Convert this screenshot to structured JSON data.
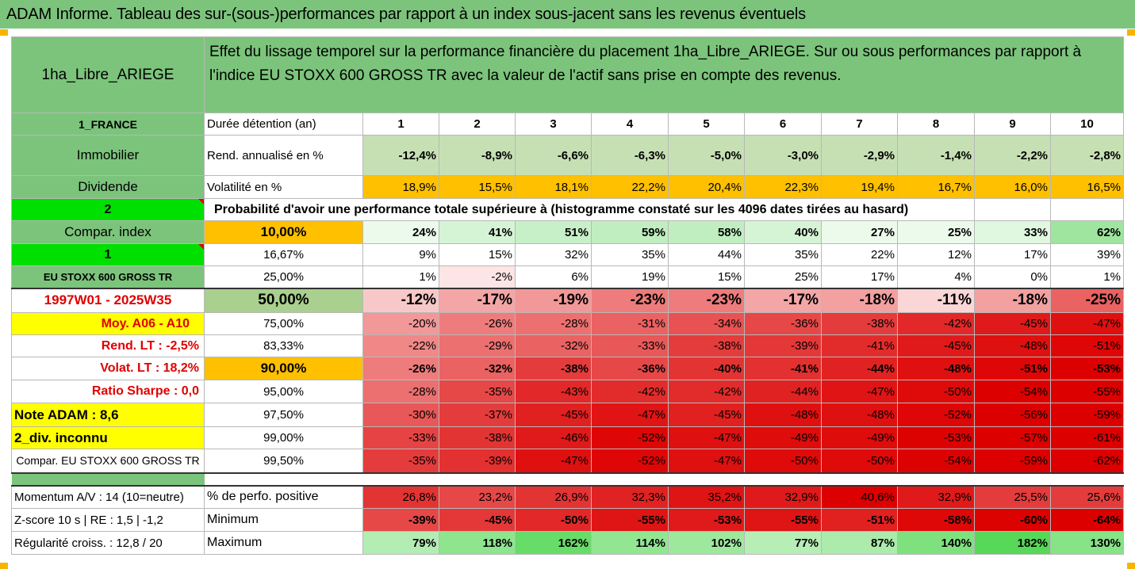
{
  "title": "ADAM Informe. Tableau des sur-(sous-)performances par rapport à un index sous-jacent sans les revenus éventuels",
  "product": "1ha_Libre_ARIEGE",
  "description": "Effet du lissage temporel sur la performance financière du placement 1ha_Libre_ARIEGE. Sur ou sous performances par rapport à l'indice EU STOXX 600 GROSS TR avec la valeur de l'actif sans prise en compte des revenus.",
  "left": {
    "country": "1_FRANCE",
    "category": "Immobilier",
    "dividende": "Dividende",
    "n2": "2",
    "compar": "Compar. index",
    "n1": "1",
    "index": "EU STOXX 600 GROSS TR",
    "period": "1997W01 - 2025W35",
    "moy": "Moy. A06 - A10",
    "rend": "Rend. LT :   -2,5%",
    "volat": "Volat. LT :   18,2%",
    "sharpe": "Ratio Sharpe :   0,0",
    "note": "Note ADAM : 8,6",
    "div": "2_div. inconnu",
    "compar2": "Compar. EU STOXX 600 GROSS TR",
    "momentum": "Momentum A/V : 14 (10=neutre)",
    "zscore": "Z-score 10 s  | RE : 1,5  | -1,2",
    "regul": "Régularité croiss. : 12,8 / 20"
  },
  "labels": {
    "duree": "Durée détention (an)",
    "rend": "Rend. annualisé en %",
    "vol": "Volatilité en %",
    "proba": "Probabilité d'avoir une performance totale supérieure à (histogramme constaté sur les 4096 dates tirées au hasard)",
    "pos": "% de perfo. positive",
    "min": "Minimum",
    "max": "Maximum"
  },
  "years": [
    "1",
    "2",
    "3",
    "4",
    "5",
    "6",
    "7",
    "8",
    "9",
    "10"
  ],
  "rend": [
    "-12,4%",
    "-8,9%",
    "-6,6%",
    "-6,3%",
    "-5,0%",
    "-3,0%",
    "-2,9%",
    "-1,4%",
    "-2,2%",
    "-2,8%"
  ],
  "vol": [
    "18,9%",
    "15,5%",
    "18,1%",
    "22,2%",
    "20,4%",
    "22,3%",
    "19,4%",
    "16,7%",
    "16,0%",
    "16,5%"
  ],
  "quantiles": [
    {
      "p": "10,00%",
      "v": [
        "24%",
        "41%",
        "51%",
        "59%",
        "58%",
        "40%",
        "27%",
        "25%",
        "33%",
        "62%"
      ]
    },
    {
      "p": "16,67%",
      "v": [
        "9%",
        "15%",
        "32%",
        "35%",
        "44%",
        "35%",
        "22%",
        "12%",
        "17%",
        "39%"
      ]
    },
    {
      "p": "25,00%",
      "v": [
        "1%",
        "-2%",
        "6%",
        "19%",
        "15%",
        "25%",
        "17%",
        "4%",
        "0%",
        "1%"
      ]
    },
    {
      "p": "50,00%",
      "v": [
        "-12%",
        "-17%",
        "-19%",
        "-23%",
        "-23%",
        "-17%",
        "-18%",
        "-11%",
        "-18%",
        "-25%"
      ]
    },
    {
      "p": "75,00%",
      "v": [
        "-20%",
        "-26%",
        "-28%",
        "-31%",
        "-34%",
        "-36%",
        "-38%",
        "-42%",
        "-45%",
        "-47%"
      ]
    },
    {
      "p": "83,33%",
      "v": [
        "-22%",
        "-29%",
        "-32%",
        "-33%",
        "-38%",
        "-39%",
        "-41%",
        "-45%",
        "-48%",
        "-51%"
      ]
    },
    {
      "p": "90,00%",
      "v": [
        "-26%",
        "-32%",
        "-38%",
        "-36%",
        "-40%",
        "-41%",
        "-44%",
        "-48%",
        "-51%",
        "-53%"
      ]
    },
    {
      "p": "95,00%",
      "v": [
        "-28%",
        "-35%",
        "-43%",
        "-42%",
        "-42%",
        "-44%",
        "-47%",
        "-50%",
        "-54%",
        "-55%"
      ]
    },
    {
      "p": "97,50%",
      "v": [
        "-30%",
        "-37%",
        "-45%",
        "-47%",
        "-45%",
        "-48%",
        "-48%",
        "-52%",
        "-56%",
        "-59%"
      ]
    },
    {
      "p": "99,00%",
      "v": [
        "-33%",
        "-38%",
        "-46%",
        "-52%",
        "-47%",
        "-49%",
        "-49%",
        "-53%",
        "-57%",
        "-61%"
      ]
    },
    {
      "p": "99,50%",
      "v": [
        "-35%",
        "-39%",
        "-47%",
        "-52%",
        "-47%",
        "-50%",
        "-50%",
        "-54%",
        "-59%",
        "-62%"
      ]
    }
  ],
  "pos": [
    "26,8%",
    "23,2%",
    "26,9%",
    "32,3%",
    "35,2%",
    "32,9%",
    "40,6%",
    "32,9%",
    "25,5%",
    "25,6%"
  ],
  "min": [
    "-39%",
    "-45%",
    "-50%",
    "-55%",
    "-53%",
    "-55%",
    "-51%",
    "-58%",
    "-60%",
    "-64%"
  ],
  "max": [
    "79%",
    "118%",
    "162%",
    "114%",
    "102%",
    "77%",
    "87%",
    "140%",
    "182%",
    "130%"
  ],
  "colors": {
    "header_green": "#7cc47c",
    "bright_green": "#00e000",
    "yellow": "#ffff00",
    "orange": "#ffc000",
    "deep_red": "#e60000"
  }
}
